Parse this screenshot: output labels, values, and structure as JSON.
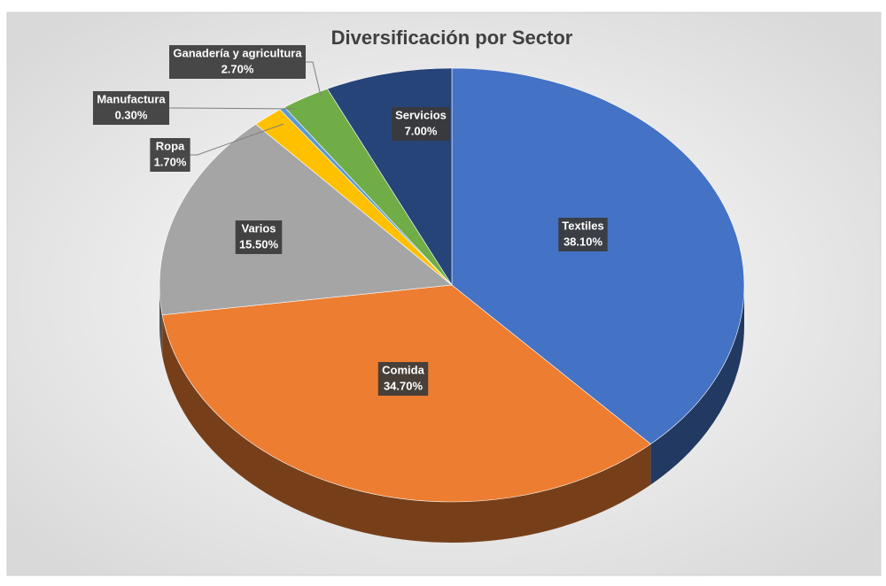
{
  "chart_data": {
    "type": "pie",
    "title": "Diversificación por Sector",
    "categories": [
      "Textiles",
      "Comida",
      "Varios",
      "Ropa",
      "Manufactura",
      "Ganadería y agricultura",
      "Servicios"
    ],
    "values": [
      38.1,
      34.7,
      15.5,
      1.7,
      0.3,
      2.7,
      7.0
    ],
    "value_labels": [
      "38.10%",
      "34.70%",
      "15.50%",
      "1.70%",
      "0.30%",
      "2.70%",
      "7.00%"
    ],
    "colors": [
      "#4472c4",
      "#ed7d31",
      "#a5a5a5",
      "#ffc000",
      "#5b9bd5",
      "#70ad47",
      "#264478"
    ]
  }
}
